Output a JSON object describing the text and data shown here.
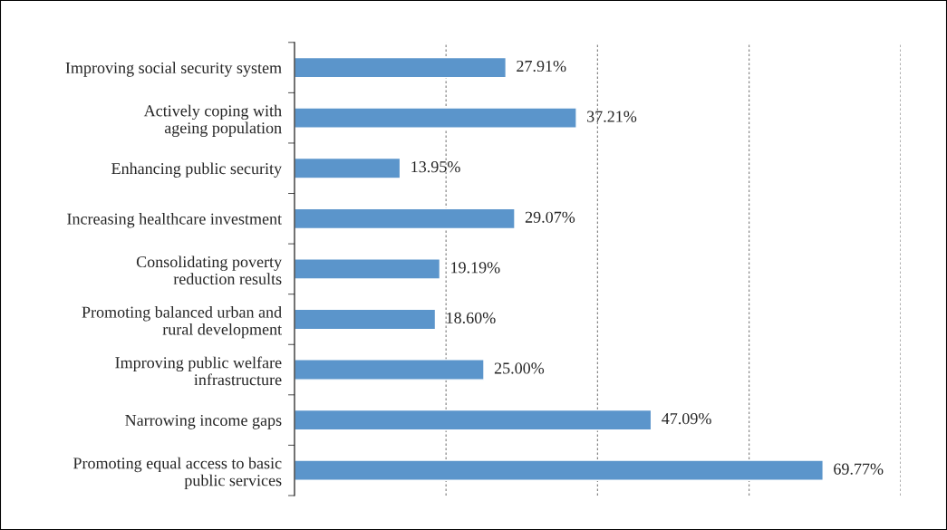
{
  "chart_data": {
    "type": "bar",
    "orientation": "horizontal",
    "categories": [
      "Improving social security system",
      "Actively coping with\nageing population",
      "Enhancing public security",
      "Increasing healthcare investment",
      "Consolidating poverty\nreduction results",
      "Promoting balanced urban and\nrural development",
      "Improving public welfare\ninfrastructure",
      "Narrowing income gaps",
      "Promoting equal access to basic\npublic services"
    ],
    "values": [
      27.91,
      37.21,
      13.95,
      29.07,
      19.19,
      18.6,
      25.0,
      47.09,
      69.77
    ],
    "value_labels": [
      "27.91%",
      "37.21%",
      "13.95%",
      "29.07%",
      "19.19%",
      "18.60%",
      "25.00%",
      "47.09%",
      "69.77%"
    ],
    "color": "#5b95cb",
    "xlim": [
      0,
      80
    ],
    "xticks": [
      {
        "value": 20,
        "label": null
      },
      {
        "value": 40,
        "label": null
      },
      {
        "value": 60,
        "label": null
      },
      {
        "value": 80,
        "label": null
      }
    ],
    "tick_labels": "y",
    "grid": "x"
  }
}
